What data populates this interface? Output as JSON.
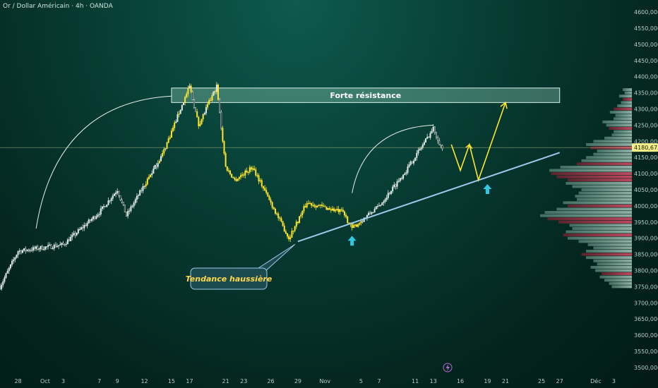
{
  "chart_title": "Or / Dollar Américain · 4h · OANDA",
  "chart_data": {
    "type": "candlestick",
    "title": "Or / Dollar Américain · 4h · OANDA",
    "ylim": [
      3480,
      4620
    ],
    "y_ticks": [
      "4600,000",
      "4550,000",
      "4500,000",
      "4450,000",
      "4400,000",
      "4350,000",
      "4300,000",
      "4250,000",
      "4200,000",
      "4150,000",
      "4100,000",
      "4050,000",
      "4000,000",
      "3950,000",
      "3900,000",
      "3850,000",
      "3800,000",
      "3750,000",
      "3700,000",
      "3650,000",
      "3600,000",
      "3550,000",
      "3500,000"
    ],
    "x_ticks": [
      "28",
      "Oct",
      "3",
      "7",
      "9",
      "12",
      "15",
      "17",
      "21",
      "23",
      "26",
      "29",
      "Nov",
      "5",
      "7",
      "11",
      "13",
      "16",
      "19",
      "21",
      "25",
      "27",
      "Déc",
      "3"
    ],
    "current_price": 4180.675,
    "current_price_label": "4180,675",
    "price_path_key_points": [
      {
        "date": "Sep 26",
        "price": 3750
      },
      {
        "date": "Sep 28",
        "price": 3860
      },
      {
        "date": "Oct 3",
        "price": 3880
      },
      {
        "date": "Oct 7",
        "price": 3980
      },
      {
        "date": "Oct 9",
        "price": 4050
      },
      {
        "date": "Oct 10",
        "price": 3970
      },
      {
        "date": "Oct 14",
        "price": 4160
      },
      {
        "date": "Oct 17",
        "price": 4370
      },
      {
        "date": "Oct 18",
        "price": 4250
      },
      {
        "date": "Oct 20",
        "price": 4370
      },
      {
        "date": "Oct 21",
        "price": 4120
      },
      {
        "date": "Oct 22",
        "price": 4080
      },
      {
        "date": "Oct 24",
        "price": 4120
      },
      {
        "date": "Oct 28",
        "price": 3900
      },
      {
        "date": "Oct 30",
        "price": 4010
      },
      {
        "date": "Nov 3",
        "price": 3980
      },
      {
        "date": "Nov 4",
        "price": 3930
      },
      {
        "date": "Nov 7",
        "price": 4000
      },
      {
        "date": "Nov 10",
        "price": 4110
      },
      {
        "date": "Nov 13",
        "price": 4240
      },
      {
        "date": "Nov 14",
        "price": 4175
      }
    ],
    "annotations": {
      "resistance_zone": {
        "label": "Forte résistance",
        "price_low": 4320,
        "price_high": 4365,
        "from": "Oct 15",
        "to": "Nov 27"
      },
      "trendline": {
        "label": "Tendance haussière",
        "from": {
          "date": "Oct 29",
          "price": 3890
        },
        "to": {
          "date": "Nov 27",
          "price": 4165
        }
      },
      "projection": [
        {
          "date": "Nov 15",
          "price": 4190
        },
        {
          "date": "Nov 16",
          "price": 4110
        },
        {
          "date": "Nov 17",
          "price": 4190
        },
        {
          "date": "Nov 18",
          "price": 4080
        },
        {
          "date": "Nov 21",
          "price": 4320
        }
      ],
      "up_arrows": [
        {
          "date": "Nov 4",
          "price": 3890
        },
        {
          "date": "Nov 19",
          "price": 4050
        }
      ],
      "arcs": [
        {
          "from": {
            "date": "Sep 30",
            "price": 3930
          },
          "to": {
            "date": "Oct 15",
            "price": 4340
          }
        },
        {
          "from": {
            "date": "Nov 4",
            "price": 4040
          },
          "to": {
            "date": "Nov 13",
            "price": 4250
          }
        }
      ]
    },
    "volume_profile": {
      "bins_start": 3745,
      "bin_size": 10,
      "weights": [
        0.22,
        0.25,
        0.3,
        0.35,
        0.33,
        0.4,
        0.45,
        0.38,
        0.42,
        0.5,
        0.55,
        0.5,
        0.42,
        0.48,
        0.58,
        0.7,
        0.75,
        0.72,
        0.65,
        0.68,
        0.8,
        0.92,
        1.0,
        0.95,
        0.82,
        0.7,
        0.75,
        0.6,
        0.62,
        0.58,
        0.55,
        0.65,
        0.72,
        0.7,
        0.82,
        0.88,
        0.9,
        0.78,
        0.6,
        0.55,
        0.5,
        0.42,
        0.38,
        0.45,
        0.5,
        0.42,
        0.3,
        0.22,
        0.2,
        0.25,
        0.28,
        0.32,
        0.2,
        0.18,
        0.24,
        0.2,
        0.16,
        0.12,
        0.1,
        0.14,
        0.08,
        0.1
      ],
      "sell_bins": [
        4,
        10,
        16,
        20,
        21,
        25,
        33,
        34,
        35,
        38,
        43,
        49,
        55,
        58
      ]
    }
  }
}
